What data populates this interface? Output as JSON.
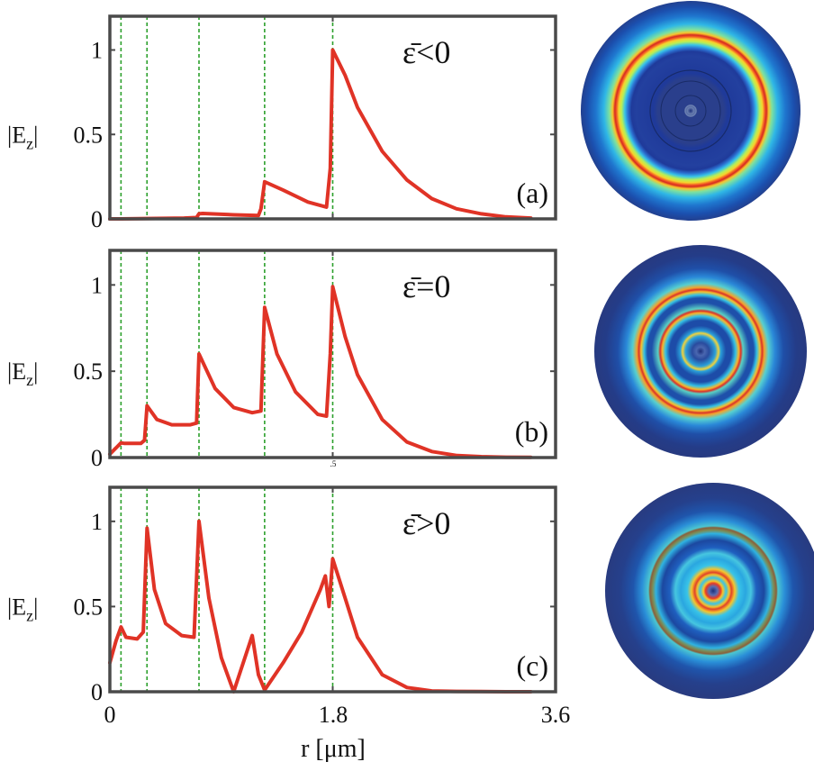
{
  "figure": {
    "xlabel": "r  [μm]",
    "ylabel": "|E_z|",
    "xlim": [
      0,
      3.6
    ],
    "ylim": [
      0,
      1.2
    ],
    "xticks": [
      "0",
      "1.8",
      "3.6"
    ],
    "yticks": [
      "0",
      "0.5",
      "1"
    ],
    "interface_positions": [
      0.09,
      0.3,
      0.72,
      1.25,
      1.8
    ],
    "line_color": "#e03326",
    "interface_color": "#2ca02c",
    "frame_color": "#4a4a4a",
    "stray_mark": ".5"
  },
  "chart_data": [
    {
      "type": "line",
      "panel_label": "(a)",
      "condition": "ε̄<0",
      "ylim": [
        0,
        1.2
      ],
      "x": [
        0,
        0.09,
        0.3,
        0.6,
        0.7,
        0.72,
        0.75,
        1.0,
        1.2,
        1.22,
        1.25,
        1.4,
        1.6,
        1.75,
        1.78,
        1.8,
        1.9,
        2.0,
        2.2,
        2.4,
        2.6,
        2.8,
        3.0,
        3.2,
        3.4
      ],
      "y": [
        0,
        0,
        0.002,
        0.005,
        0.008,
        0.03,
        0.032,
        0.024,
        0.02,
        0.06,
        0.22,
        0.17,
        0.1,
        0.07,
        0.3,
        1.0,
        0.85,
        0.66,
        0.4,
        0.23,
        0.12,
        0.06,
        0.03,
        0.012,
        0.005
      ]
    },
    {
      "type": "line",
      "panel_label": "(b)",
      "condition": "ε̄=0",
      "ylim": [
        0,
        1.2
      ],
      "x": [
        0,
        0.09,
        0.12,
        0.25,
        0.28,
        0.3,
        0.38,
        0.5,
        0.65,
        0.7,
        0.72,
        0.85,
        1.0,
        1.15,
        1.22,
        1.25,
        1.35,
        1.5,
        1.68,
        1.75,
        1.78,
        1.8,
        1.9,
        2.0,
        2.2,
        2.4,
        2.6,
        2.8,
        3.0,
        3.2,
        3.4
      ],
      "y": [
        0.02,
        0.085,
        0.082,
        0.082,
        0.1,
        0.3,
        0.22,
        0.19,
        0.19,
        0.2,
        0.6,
        0.4,
        0.29,
        0.26,
        0.27,
        0.87,
        0.6,
        0.38,
        0.25,
        0.24,
        0.6,
        0.99,
        0.7,
        0.48,
        0.22,
        0.09,
        0.035,
        0.012,
        0.005,
        0.002,
        0.001
      ]
    },
    {
      "type": "line",
      "panel_label": "(c)",
      "condition": "ε̄>0",
      "ylim": [
        0,
        1.2
      ],
      "x": [
        0,
        0.05,
        0.09,
        0.13,
        0.22,
        0.27,
        0.3,
        0.36,
        0.45,
        0.58,
        0.68,
        0.72,
        0.8,
        0.9,
        1.0,
        1.15,
        1.2,
        1.25,
        1.4,
        1.55,
        1.7,
        1.74,
        1.77,
        1.8,
        1.9,
        2.0,
        2.2,
        2.4,
        2.6,
        2.8,
        3.0,
        3.2,
        3.4
      ],
      "y": [
        0.17,
        0.3,
        0.38,
        0.32,
        0.31,
        0.35,
        0.96,
        0.6,
        0.4,
        0.33,
        0.32,
        1.0,
        0.55,
        0.2,
        0.0,
        0.33,
        0.1,
        0.01,
        0.17,
        0.35,
        0.6,
        0.68,
        0.5,
        0.78,
        0.55,
        0.32,
        0.1,
        0.025,
        0.005,
        0.002,
        0.001,
        0.0,
        0.0
      ]
    }
  ]
}
